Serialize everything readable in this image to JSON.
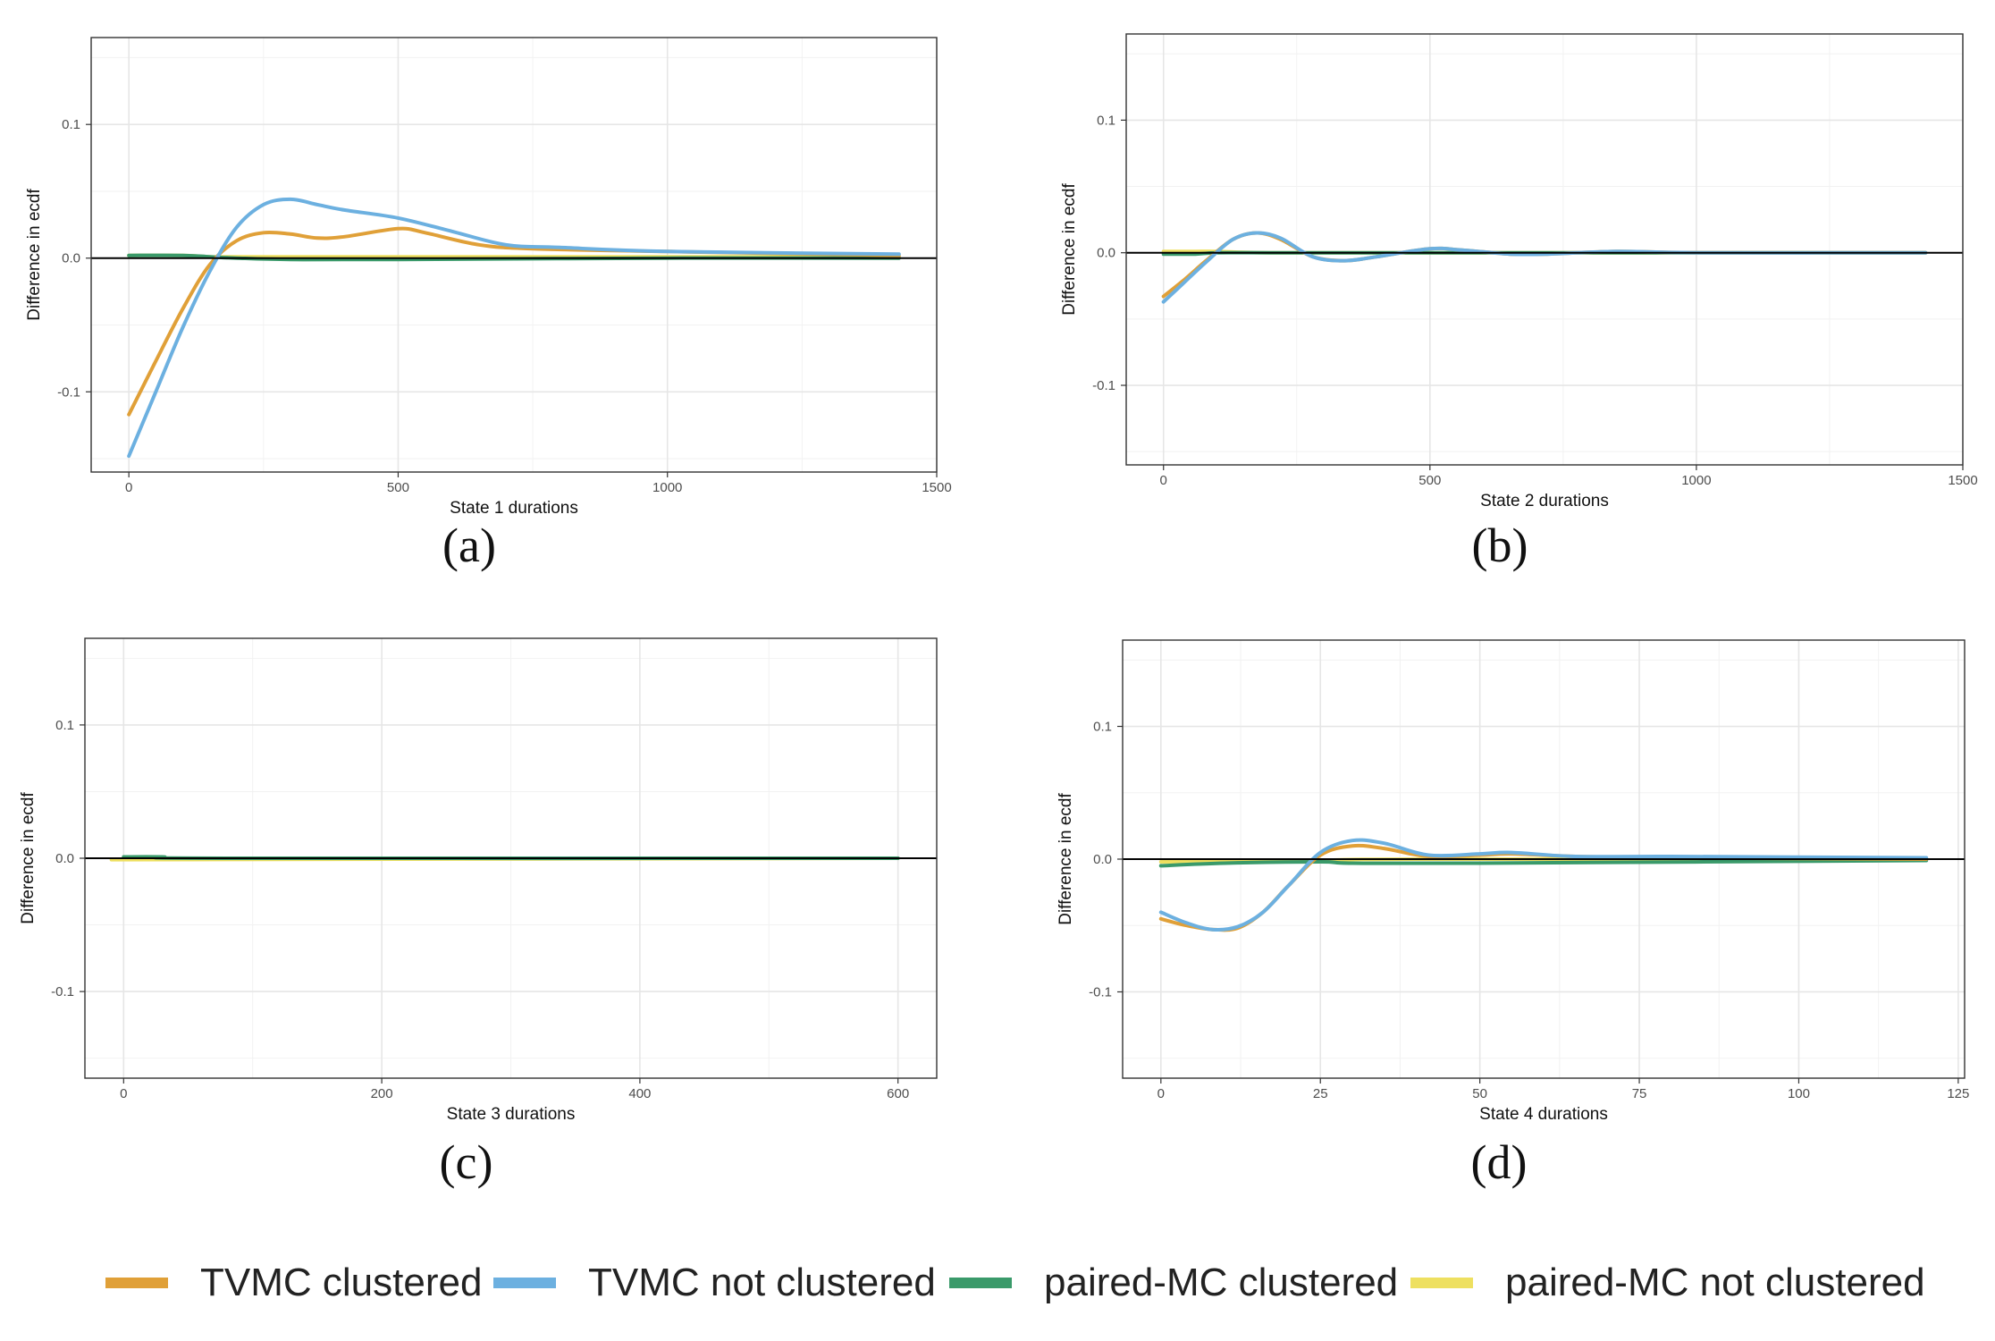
{
  "chart_data": [
    {
      "id": "a",
      "type": "line",
      "caption": "(a)",
      "xlabel": "State 1 durations",
      "ylabel": "Difference in ecdf",
      "xlim": [
        -70,
        1500
      ],
      "ylim": [
        -0.16,
        0.165
      ],
      "xticks": [
        0,
        500,
        1000,
        1500
      ],
      "xtick_labels": [
        "0",
        "500",
        "1000",
        "1500"
      ],
      "yticks": [
        -0.1,
        0.0,
        0.1
      ],
      "ytick_labels": [
        "-0.1",
        "0.0",
        "0.1"
      ],
      "series": [
        {
          "name": "paired-MC not clustered",
          "x": [
            0,
            100,
            150,
            200,
            300,
            500,
            1000,
            1430
          ],
          "y": [
            0.002,
            0.002,
            0.001,
            0.001,
            0.001,
            0.001,
            0.001,
            0.001
          ]
        },
        {
          "name": "paired-MC clustered",
          "x": [
            0,
            100,
            150,
            200,
            300,
            500,
            1000,
            1430
          ],
          "y": [
            0.002,
            0.002,
            0.001,
            0.0,
            -0.001,
            -0.001,
            0.0,
            0.0
          ]
        },
        {
          "name": "TVMC clustered",
          "x": [
            0,
            50,
            100,
            150,
            200,
            250,
            300,
            350,
            400,
            500,
            550,
            650,
            750,
            1000,
            1430
          ],
          "y": [
            -0.117,
            -0.077,
            -0.038,
            -0.005,
            0.013,
            0.019,
            0.018,
            0.015,
            0.016,
            0.022,
            0.019,
            0.01,
            0.007,
            0.005,
            0.002
          ]
        },
        {
          "name": "TVMC not clustered",
          "x": [
            0,
            50,
            100,
            150,
            200,
            250,
            300,
            350,
            400,
            500,
            600,
            700,
            800,
            1000,
            1430
          ],
          "y": [
            -0.148,
            -0.1,
            -0.052,
            -0.01,
            0.023,
            0.04,
            0.044,
            0.04,
            0.036,
            0.03,
            0.02,
            0.01,
            0.008,
            0.005,
            0.003
          ]
        }
      ]
    },
    {
      "id": "b",
      "type": "line",
      "caption": "(b)",
      "xlabel": "State 2 durations",
      "ylabel": "Difference in ecdf",
      "xlim": [
        -70,
        1500
      ],
      "ylim": [
        -0.16,
        0.165
      ],
      "xticks": [
        0,
        500,
        1000,
        1500
      ],
      "xtick_labels": [
        "0",
        "500",
        "1000",
        "1500"
      ],
      "yticks": [
        -0.1,
        0.0,
        0.1
      ],
      "ytick_labels": [
        "-0.1",
        "0.0",
        "0.1"
      ],
      "series": [
        {
          "name": "paired-MC not clustered",
          "x": [
            0,
            60,
            100,
            200,
            500,
            1000,
            1430
          ],
          "y": [
            0.001,
            0.001,
            0.001,
            0.0,
            0.0,
            0.0,
            0.0
          ]
        },
        {
          "name": "paired-MC clustered",
          "x": [
            0,
            60,
            100,
            200,
            500,
            1000,
            1430
          ],
          "y": [
            -0.001,
            -0.001,
            0.0,
            0.0,
            0.0,
            0.0,
            0.0
          ]
        },
        {
          "name": "TVMC clustered",
          "x": [
            0,
            40,
            80,
            130,
            175,
            220,
            280,
            340,
            400,
            500,
            560,
            650,
            720,
            850,
            1000,
            1430
          ],
          "y": [
            -0.033,
            -0.02,
            -0.006,
            0.01,
            0.015,
            0.01,
            -0.003,
            -0.006,
            -0.003,
            0.003,
            0.002,
            -0.001,
            -0.001,
            0.001,
            0.0,
            0.0
          ]
        },
        {
          "name": "TVMC not clustered",
          "x": [
            0,
            40,
            80,
            130,
            175,
            220,
            280,
            340,
            400,
            500,
            560,
            650,
            720,
            850,
            1000,
            1430
          ],
          "y": [
            -0.037,
            -0.022,
            -0.007,
            0.01,
            0.015,
            0.011,
            -0.003,
            -0.006,
            -0.003,
            0.003,
            0.002,
            -0.001,
            -0.001,
            0.001,
            0.0,
            0.0
          ]
        }
      ]
    },
    {
      "id": "c",
      "type": "line",
      "caption": "(c)",
      "xlabel": "State 3 durations",
      "ylabel": "Difference in ecdf",
      "xlim": [
        -30,
        630
      ],
      "ylim": [
        -0.165,
        0.165
      ],
      "xticks": [
        0,
        200,
        400,
        600
      ],
      "xtick_labels": [
        "0",
        "200",
        "400",
        "600"
      ],
      "yticks": [
        -0.1,
        0.0,
        0.1
      ],
      "ytick_labels": [
        "-0.1",
        "0.0",
        "0.1"
      ],
      "series": [
        {
          "name": "TVMC clustered",
          "x": [
            0,
            600
          ],
          "y": [
            0.0,
            0.0
          ]
        },
        {
          "name": "TVMC not clustered",
          "x": [
            0,
            600
          ],
          "y": [
            0.0,
            0.0
          ]
        },
        {
          "name": "paired-MC not clustered",
          "x": [
            0,
            50,
            600
          ],
          "y": [
            -0.001,
            -0.001,
            0.0
          ]
        },
        {
          "name": "paired-MC clustered",
          "x": [
            0,
            30,
            80,
            600
          ],
          "y": [
            0.001,
            0.001,
            0.0,
            0.0
          ]
        }
      ]
    },
    {
      "id": "d",
      "type": "line",
      "caption": "(d)",
      "xlabel": "State 4 durations",
      "ylabel": "Difference in ecdf",
      "xlim": [
        -6,
        126
      ],
      "ylim": [
        -0.165,
        0.165
      ],
      "xticks": [
        0,
        25,
        50,
        75,
        100,
        125
      ],
      "xtick_labels": [
        "0",
        "25",
        "50",
        "75",
        "100",
        "125"
      ],
      "yticks": [
        -0.1,
        0.0,
        0.1
      ],
      "ytick_labels": [
        "-0.1",
        "0.0",
        "0.1"
      ],
      "series": [
        {
          "name": "paired-MC not clustered",
          "x": [
            0,
            10,
            25,
            40,
            120
          ],
          "y": [
            -0.002,
            -0.002,
            -0.001,
            0.0,
            0.0
          ]
        },
        {
          "name": "paired-MC clustered",
          "x": [
            0,
            10,
            25,
            30,
            50,
            120
          ],
          "y": [
            -0.005,
            -0.003,
            -0.002,
            -0.003,
            -0.003,
            -0.001
          ]
        },
        {
          "name": "TVMC clustered",
          "x": [
            0,
            4,
            8,
            12,
            16,
            20,
            25,
            30,
            35,
            42,
            50,
            55,
            65,
            80,
            120
          ],
          "y": [
            -0.045,
            -0.05,
            -0.053,
            -0.052,
            -0.04,
            -0.02,
            0.003,
            0.01,
            0.008,
            0.002,
            0.003,
            0.004,
            0.002,
            0.001,
            0.0
          ]
        },
        {
          "name": "TVMC not clustered",
          "x": [
            0,
            4,
            8,
            12,
            16,
            20,
            25,
            30,
            35,
            42,
            50,
            55,
            65,
            80,
            120
          ],
          "y": [
            -0.04,
            -0.048,
            -0.053,
            -0.051,
            -0.04,
            -0.02,
            0.005,
            0.014,
            0.012,
            0.003,
            0.004,
            0.005,
            0.002,
            0.002,
            0.001
          ]
        }
      ]
    }
  ],
  "legend": {
    "items": [
      {
        "label": "TVMC clustered",
        "color": "#E0A038"
      },
      {
        "label": "TVMC not clustered",
        "color": "#6CB0E0"
      },
      {
        "label": "paired-MC clustered",
        "color": "#3A9A6A"
      },
      {
        "label": "paired-MC not clustered",
        "color": "#EEE060"
      }
    ]
  },
  "colors": {
    "TVMC clustered": "#E0A038",
    "TVMC not clustered": "#6CB0E0",
    "paired-MC clustered": "#3A9A6A",
    "paired-MC not clustered": "#EEE060"
  }
}
